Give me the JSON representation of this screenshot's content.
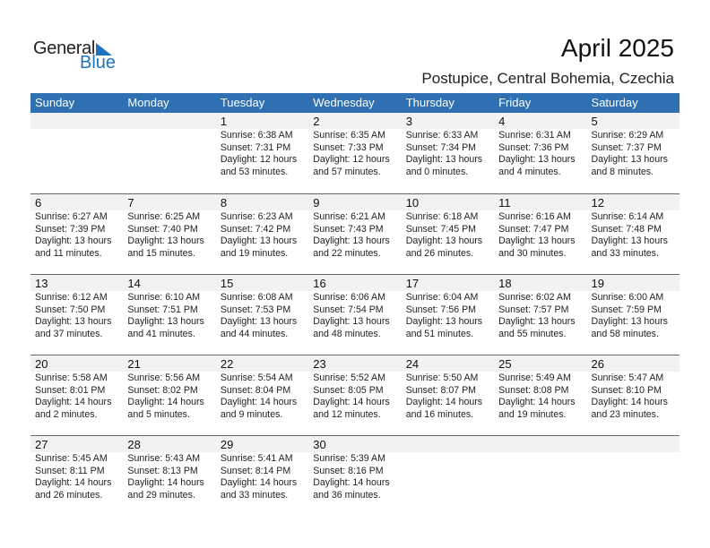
{
  "logo": {
    "text1": "General",
    "text2": "Blue",
    "color": "#1d73bd"
  },
  "title": "April 2025",
  "subtitle": "Postupice, Central Bohemia, Czechia",
  "colors": {
    "header": "#2e70b1",
    "band": "#f2f2f2"
  },
  "weekdays": [
    "Sunday",
    "Monday",
    "Tuesday",
    "Wednesday",
    "Thursday",
    "Friday",
    "Saturday"
  ],
  "weeks": [
    [
      null,
      null,
      {
        "day": "1",
        "sunrise": "Sunrise: 6:38 AM",
        "sunset": "Sunset: 7:31 PM",
        "daylight1": "Daylight: 12 hours",
        "daylight2": "and 53 minutes."
      },
      {
        "day": "2",
        "sunrise": "Sunrise: 6:35 AM",
        "sunset": "Sunset: 7:33 PM",
        "daylight1": "Daylight: 12 hours",
        "daylight2": "and 57 minutes."
      },
      {
        "day": "3",
        "sunrise": "Sunrise: 6:33 AM",
        "sunset": "Sunset: 7:34 PM",
        "daylight1": "Daylight: 13 hours",
        "daylight2": "and 0 minutes."
      },
      {
        "day": "4",
        "sunrise": "Sunrise: 6:31 AM",
        "sunset": "Sunset: 7:36 PM",
        "daylight1": "Daylight: 13 hours",
        "daylight2": "and 4 minutes."
      },
      {
        "day": "5",
        "sunrise": "Sunrise: 6:29 AM",
        "sunset": "Sunset: 7:37 PM",
        "daylight1": "Daylight: 13 hours",
        "daylight2": "and 8 minutes."
      }
    ],
    [
      {
        "day": "6",
        "sunrise": "Sunrise: 6:27 AM",
        "sunset": "Sunset: 7:39 PM",
        "daylight1": "Daylight: 13 hours",
        "daylight2": "and 11 minutes."
      },
      {
        "day": "7",
        "sunrise": "Sunrise: 6:25 AM",
        "sunset": "Sunset: 7:40 PM",
        "daylight1": "Daylight: 13 hours",
        "daylight2": "and 15 minutes."
      },
      {
        "day": "8",
        "sunrise": "Sunrise: 6:23 AM",
        "sunset": "Sunset: 7:42 PM",
        "daylight1": "Daylight: 13 hours",
        "daylight2": "and 19 minutes."
      },
      {
        "day": "9",
        "sunrise": "Sunrise: 6:21 AM",
        "sunset": "Sunset: 7:43 PM",
        "daylight1": "Daylight: 13 hours",
        "daylight2": "and 22 minutes."
      },
      {
        "day": "10",
        "sunrise": "Sunrise: 6:18 AM",
        "sunset": "Sunset: 7:45 PM",
        "daylight1": "Daylight: 13 hours",
        "daylight2": "and 26 minutes."
      },
      {
        "day": "11",
        "sunrise": "Sunrise: 6:16 AM",
        "sunset": "Sunset: 7:47 PM",
        "daylight1": "Daylight: 13 hours",
        "daylight2": "and 30 minutes."
      },
      {
        "day": "12",
        "sunrise": "Sunrise: 6:14 AM",
        "sunset": "Sunset: 7:48 PM",
        "daylight1": "Daylight: 13 hours",
        "daylight2": "and 33 minutes."
      }
    ],
    [
      {
        "day": "13",
        "sunrise": "Sunrise: 6:12 AM",
        "sunset": "Sunset: 7:50 PM",
        "daylight1": "Daylight: 13 hours",
        "daylight2": "and 37 minutes."
      },
      {
        "day": "14",
        "sunrise": "Sunrise: 6:10 AM",
        "sunset": "Sunset: 7:51 PM",
        "daylight1": "Daylight: 13 hours",
        "daylight2": "and 41 minutes."
      },
      {
        "day": "15",
        "sunrise": "Sunrise: 6:08 AM",
        "sunset": "Sunset: 7:53 PM",
        "daylight1": "Daylight: 13 hours",
        "daylight2": "and 44 minutes."
      },
      {
        "day": "16",
        "sunrise": "Sunrise: 6:06 AM",
        "sunset": "Sunset: 7:54 PM",
        "daylight1": "Daylight: 13 hours",
        "daylight2": "and 48 minutes."
      },
      {
        "day": "17",
        "sunrise": "Sunrise: 6:04 AM",
        "sunset": "Sunset: 7:56 PM",
        "daylight1": "Daylight: 13 hours",
        "daylight2": "and 51 minutes."
      },
      {
        "day": "18",
        "sunrise": "Sunrise: 6:02 AM",
        "sunset": "Sunset: 7:57 PM",
        "daylight1": "Daylight: 13 hours",
        "daylight2": "and 55 minutes."
      },
      {
        "day": "19",
        "sunrise": "Sunrise: 6:00 AM",
        "sunset": "Sunset: 7:59 PM",
        "daylight1": "Daylight: 13 hours",
        "daylight2": "and 58 minutes."
      }
    ],
    [
      {
        "day": "20",
        "sunrise": "Sunrise: 5:58 AM",
        "sunset": "Sunset: 8:01 PM",
        "daylight1": "Daylight: 14 hours",
        "daylight2": "and 2 minutes."
      },
      {
        "day": "21",
        "sunrise": "Sunrise: 5:56 AM",
        "sunset": "Sunset: 8:02 PM",
        "daylight1": "Daylight: 14 hours",
        "daylight2": "and 5 minutes."
      },
      {
        "day": "22",
        "sunrise": "Sunrise: 5:54 AM",
        "sunset": "Sunset: 8:04 PM",
        "daylight1": "Daylight: 14 hours",
        "daylight2": "and 9 minutes."
      },
      {
        "day": "23",
        "sunrise": "Sunrise: 5:52 AM",
        "sunset": "Sunset: 8:05 PM",
        "daylight1": "Daylight: 14 hours",
        "daylight2": "and 12 minutes."
      },
      {
        "day": "24",
        "sunrise": "Sunrise: 5:50 AM",
        "sunset": "Sunset: 8:07 PM",
        "daylight1": "Daylight: 14 hours",
        "daylight2": "and 16 minutes."
      },
      {
        "day": "25",
        "sunrise": "Sunrise: 5:49 AM",
        "sunset": "Sunset: 8:08 PM",
        "daylight1": "Daylight: 14 hours",
        "daylight2": "and 19 minutes."
      },
      {
        "day": "26",
        "sunrise": "Sunrise: 5:47 AM",
        "sunset": "Sunset: 8:10 PM",
        "daylight1": "Daylight: 14 hours",
        "daylight2": "and 23 minutes."
      }
    ],
    [
      {
        "day": "27",
        "sunrise": "Sunrise: 5:45 AM",
        "sunset": "Sunset: 8:11 PM",
        "daylight1": "Daylight: 14 hours",
        "daylight2": "and 26 minutes."
      },
      {
        "day": "28",
        "sunrise": "Sunrise: 5:43 AM",
        "sunset": "Sunset: 8:13 PM",
        "daylight1": "Daylight: 14 hours",
        "daylight2": "and 29 minutes."
      },
      {
        "day": "29",
        "sunrise": "Sunrise: 5:41 AM",
        "sunset": "Sunset: 8:14 PM",
        "daylight1": "Daylight: 14 hours",
        "daylight2": "and 33 minutes."
      },
      {
        "day": "30",
        "sunrise": "Sunrise: 5:39 AM",
        "sunset": "Sunset: 8:16 PM",
        "daylight1": "Daylight: 14 hours",
        "daylight2": "and 36 minutes."
      },
      null,
      null,
      null
    ]
  ]
}
